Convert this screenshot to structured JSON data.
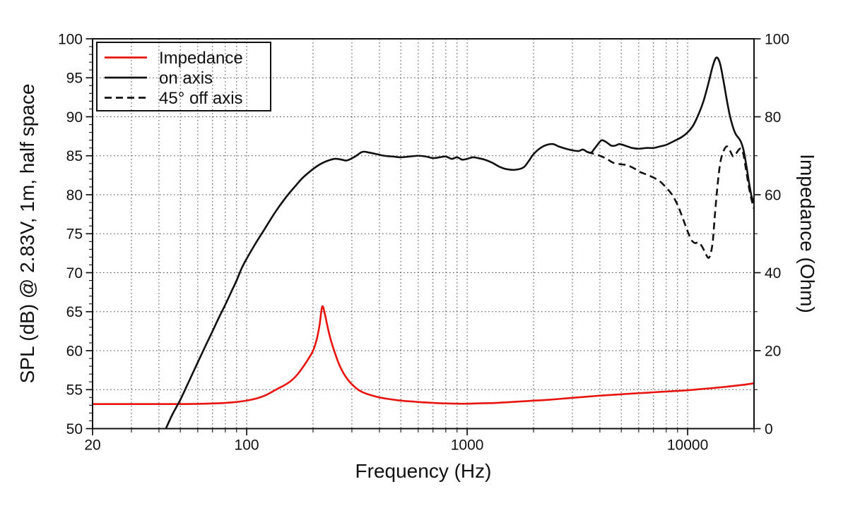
{
  "chart_data": {
    "type": "line",
    "title": "",
    "grid": {
      "on": true,
      "style": "dotted",
      "color": "#4a4a4a"
    },
    "frame_color": "#111111",
    "x_axis": {
      "title": "Frequency (Hz)",
      "scale": "log",
      "min": 20,
      "max": 20000,
      "labeled_ticks": [
        20,
        100,
        1000,
        10000
      ]
    },
    "y_left": {
      "title": "SPL (dB) @ 2.83V, 1m, half space",
      "min": 50,
      "max": 100,
      "major_step": 5,
      "minor_step": 1,
      "labeled_ticks": [
        50,
        55,
        60,
        65,
        70,
        75,
        80,
        85,
        90,
        95,
        100
      ]
    },
    "y_right": {
      "title": "Impedance (Ohm)",
      "min": 0,
      "max": 100,
      "major_step": 20,
      "minor_step": 10,
      "labeled_ticks": [
        0,
        20,
        40,
        60,
        80,
        100
      ]
    },
    "legend": {
      "position": "top-left",
      "items": [
        {
          "label": "Impedance",
          "color": "#e8140f",
          "style": "solid"
        },
        {
          "label": "on axis",
          "color": "#111111",
          "style": "solid"
        },
        {
          "label": "45° off axis",
          "color": "#111111",
          "style": "dashed"
        }
      ]
    },
    "series": [
      {
        "name": "Impedance",
        "axis": "right",
        "unit": "Ohm",
        "color": "#e8140f",
        "style": "solid",
        "points": [
          [
            20,
            6.3
          ],
          [
            30,
            6.3
          ],
          [
            40,
            6.3
          ],
          [
            50,
            6.3
          ],
          [
            60,
            6.35
          ],
          [
            70,
            6.45
          ],
          [
            80,
            6.6
          ],
          [
            90,
            6.85
          ],
          [
            100,
            7.2
          ],
          [
            110,
            7.7
          ],
          [
            120,
            8.4
          ],
          [
            130,
            9.4
          ],
          [
            140,
            10.4
          ],
          [
            150,
            11.3
          ],
          [
            160,
            12.4
          ],
          [
            170,
            13.9
          ],
          [
            180,
            15.8
          ],
          [
            190,
            17.8
          ],
          [
            200,
            20.0
          ],
          [
            208,
            23.0
          ],
          [
            214,
            26.5
          ],
          [
            220,
            31.3
          ],
          [
            226,
            29.5
          ],
          [
            232,
            26.5
          ],
          [
            240,
            23.0
          ],
          [
            250,
            19.8
          ],
          [
            262,
            16.6
          ],
          [
            275,
            14.2
          ],
          [
            290,
            12.3
          ],
          [
            305,
            11.0
          ],
          [
            320,
            10.0
          ],
          [
            340,
            9.2
          ],
          [
            370,
            8.5
          ],
          [
            400,
            8.0
          ],
          [
            440,
            7.6
          ],
          [
            480,
            7.3
          ],
          [
            520,
            7.1
          ],
          [
            580,
            6.9
          ],
          [
            650,
            6.7
          ],
          [
            730,
            6.55
          ],
          [
            820,
            6.45
          ],
          [
            920,
            6.4
          ],
          [
            1000,
            6.4
          ],
          [
            1150,
            6.5
          ],
          [
            1350,
            6.6
          ],
          [
            1600,
            6.85
          ],
          [
            1900,
            7.1
          ],
          [
            2200,
            7.3
          ],
          [
            2600,
            7.6
          ],
          [
            3000,
            7.9
          ],
          [
            3500,
            8.2
          ],
          [
            4100,
            8.5
          ],
          [
            4800,
            8.75
          ],
          [
            5600,
            9.0
          ],
          [
            6500,
            9.2
          ],
          [
            7600,
            9.45
          ],
          [
            8800,
            9.65
          ],
          [
            10000,
            9.85
          ],
          [
            11500,
            10.15
          ],
          [
            13000,
            10.4
          ],
          [
            15000,
            10.75
          ],
          [
            17000,
            11.1
          ],
          [
            18500,
            11.35
          ],
          [
            20000,
            11.65
          ]
        ]
      },
      {
        "name": "on axis",
        "axis": "left",
        "unit": "dB",
        "color": "#111111",
        "style": "solid",
        "points": [
          [
            43,
            50.0
          ],
          [
            46,
            51.8
          ],
          [
            50,
            53.7
          ],
          [
            55,
            56.2
          ],
          [
            60,
            58.5
          ],
          [
            65,
            60.6
          ],
          [
            70,
            62.5
          ],
          [
            75,
            64.3
          ],
          [
            80,
            65.9
          ],
          [
            85,
            67.5
          ],
          [
            90,
            69.0
          ],
          [
            95,
            70.6
          ],
          [
            100,
            71.8
          ],
          [
            110,
            73.8
          ],
          [
            120,
            75.5
          ],
          [
            135,
            77.8
          ],
          [
            150,
            79.6
          ],
          [
            165,
            81.0
          ],
          [
            180,
            82.2
          ],
          [
            200,
            83.3
          ],
          [
            215,
            83.9
          ],
          [
            230,
            84.3
          ],
          [
            250,
            84.6
          ],
          [
            270,
            84.5
          ],
          [
            285,
            84.4
          ],
          [
            310,
            84.9
          ],
          [
            335,
            85.5
          ],
          [
            360,
            85.4
          ],
          [
            390,
            85.2
          ],
          [
            420,
            85.0
          ],
          [
            460,
            84.9
          ],
          [
            500,
            84.8
          ],
          [
            550,
            84.9
          ],
          [
            600,
            85.0
          ],
          [
            650,
            84.9
          ],
          [
            700,
            84.7
          ],
          [
            750,
            84.8
          ],
          [
            800,
            84.9
          ],
          [
            850,
            84.6
          ],
          [
            900,
            84.8
          ],
          [
            950,
            84.5
          ],
          [
            1000,
            84.6
          ],
          [
            1060,
            84.8
          ],
          [
            1120,
            84.7
          ],
          [
            1200,
            84.5
          ],
          [
            1300,
            84.1
          ],
          [
            1400,
            83.6
          ],
          [
            1500,
            83.3
          ],
          [
            1650,
            83.2
          ],
          [
            1800,
            83.5
          ],
          [
            1900,
            84.3
          ],
          [
            2000,
            85.2
          ],
          [
            2150,
            86.0
          ],
          [
            2300,
            86.4
          ],
          [
            2450,
            86.5
          ],
          [
            2600,
            86.2
          ],
          [
            2800,
            85.9
          ],
          [
            3000,
            85.7
          ],
          [
            3200,
            85.6
          ],
          [
            3350,
            85.8
          ],
          [
            3500,
            85.5
          ],
          [
            3650,
            85.4
          ],
          [
            3800,
            86.0
          ],
          [
            4000,
            86.8
          ],
          [
            4100,
            87.0
          ],
          [
            4300,
            86.7
          ],
          [
            4500,
            86.3
          ],
          [
            4700,
            86.3
          ],
          [
            4900,
            86.5
          ],
          [
            5200,
            86.3
          ],
          [
            5600,
            86.0
          ],
          [
            6000,
            85.9
          ],
          [
            6500,
            86.0
          ],
          [
            7000,
            86.0
          ],
          [
            7500,
            86.2
          ],
          [
            8000,
            86.4
          ],
          [
            8700,
            86.9
          ],
          [
            9400,
            87.4
          ],
          [
            10000,
            88.0
          ],
          [
            10600,
            88.9
          ],
          [
            11200,
            90.3
          ],
          [
            11800,
            92.0
          ],
          [
            12400,
            94.2
          ],
          [
            13000,
            96.5
          ],
          [
            13500,
            97.6
          ],
          [
            14000,
            96.9
          ],
          [
            14500,
            94.8
          ],
          [
            15000,
            92.4
          ],
          [
            15500,
            90.3
          ],
          [
            16000,
            88.8
          ],
          [
            16500,
            87.8
          ],
          [
            17000,
            87.3
          ],
          [
            17500,
            86.7
          ],
          [
            18000,
            85.5
          ],
          [
            18500,
            83.6
          ],
          [
            19000,
            81.5
          ],
          [
            19500,
            79.8
          ],
          [
            20000,
            79.0
          ]
        ]
      },
      {
        "name": "45° off axis",
        "axis": "left",
        "unit": "dB",
        "color": "#111111",
        "style": "dashed",
        "points": [
          [
            3500,
            85.5
          ],
          [
            3700,
            85.3
          ],
          [
            4000,
            85.0
          ],
          [
            4300,
            84.6
          ],
          [
            4600,
            84.1
          ],
          [
            5000,
            83.9
          ],
          [
            5300,
            83.8
          ],
          [
            5700,
            83.4
          ],
          [
            6100,
            82.9
          ],
          [
            6500,
            82.6
          ],
          [
            7000,
            82.2
          ],
          [
            7500,
            81.7
          ],
          [
            8000,
            80.9
          ],
          [
            8500,
            80.0
          ],
          [
            9000,
            78.7
          ],
          [
            9500,
            77.0
          ],
          [
            10000,
            75.3
          ],
          [
            10400,
            74.2
          ],
          [
            10800,
            73.8
          ],
          [
            11200,
            73.9
          ],
          [
            11600,
            73.4
          ],
          [
            12000,
            72.6
          ],
          [
            12400,
            71.9
          ],
          [
            12700,
            72.4
          ],
          [
            13000,
            74.0
          ],
          [
            13300,
            77.5
          ],
          [
            13700,
            81.5
          ],
          [
            14100,
            84.3
          ],
          [
            14600,
            85.7
          ],
          [
            15100,
            86.2
          ],
          [
            15600,
            85.6
          ],
          [
            16100,
            84.9
          ],
          [
            16600,
            85.3
          ],
          [
            17100,
            85.8
          ],
          [
            17500,
            85.9
          ],
          [
            17900,
            85.2
          ],
          [
            18400,
            83.2
          ],
          [
            18900,
            81.2
          ],
          [
            19400,
            79.6
          ],
          [
            20000,
            78.2
          ]
        ]
      }
    ]
  }
}
